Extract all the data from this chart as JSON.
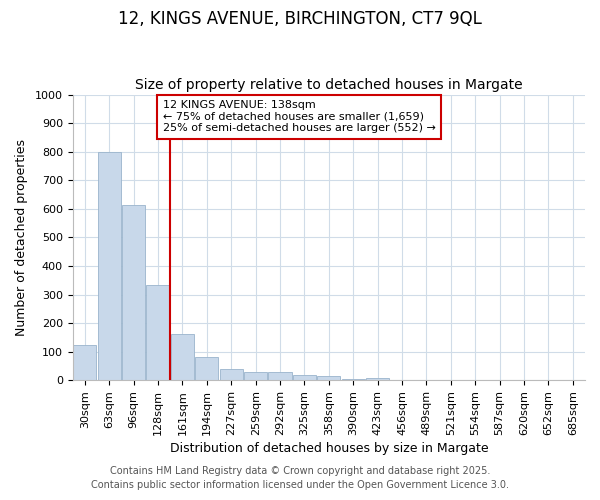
{
  "title": "12, KINGS AVENUE, BIRCHINGTON, CT7 9QL",
  "subtitle": "Size of property relative to detached houses in Margate",
  "xlabel": "Distribution of detached houses by size in Margate",
  "ylabel": "Number of detached properties",
  "bar_color": "#c8d8ea",
  "bar_edgecolor": "#9ab4cc",
  "categories": [
    "30sqm",
    "63sqm",
    "96sqm",
    "128sqm",
    "161sqm",
    "194sqm",
    "227sqm",
    "259sqm",
    "292sqm",
    "325sqm",
    "358sqm",
    "390sqm",
    "423sqm",
    "456sqm",
    "489sqm",
    "521sqm",
    "554sqm",
    "587sqm",
    "620sqm",
    "652sqm",
    "685sqm"
  ],
  "values": [
    125,
    800,
    615,
    335,
    163,
    80,
    40,
    28,
    27,
    18,
    15,
    5,
    8,
    0,
    0,
    0,
    0,
    0,
    0,
    0,
    0
  ],
  "annotation_title": "12 KINGS AVENUE: 138sqm",
  "annotation_line1": "← 75% of detached houses are smaller (1,659)",
  "annotation_line2": "25% of semi-detached houses are larger (552) →",
  "vline_color": "#cc0000",
  "vline_x": 3.5,
  "annotation_box_edgecolor": "#cc0000",
  "ylim": [
    0,
    1000
  ],
  "yticks": [
    0,
    100,
    200,
    300,
    400,
    500,
    600,
    700,
    800,
    900,
    1000
  ],
  "footer_line1": "Contains HM Land Registry data © Crown copyright and database right 2025.",
  "footer_line2": "Contains public sector information licensed under the Open Government Licence 3.0.",
  "plot_bg_color": "#ffffff",
  "fig_bg_color": "#ffffff",
  "grid_color": "#d0dce8",
  "title_fontsize": 12,
  "subtitle_fontsize": 10,
  "axis_label_fontsize": 9,
  "tick_fontsize": 8,
  "annotation_fontsize": 8,
  "footer_fontsize": 7
}
